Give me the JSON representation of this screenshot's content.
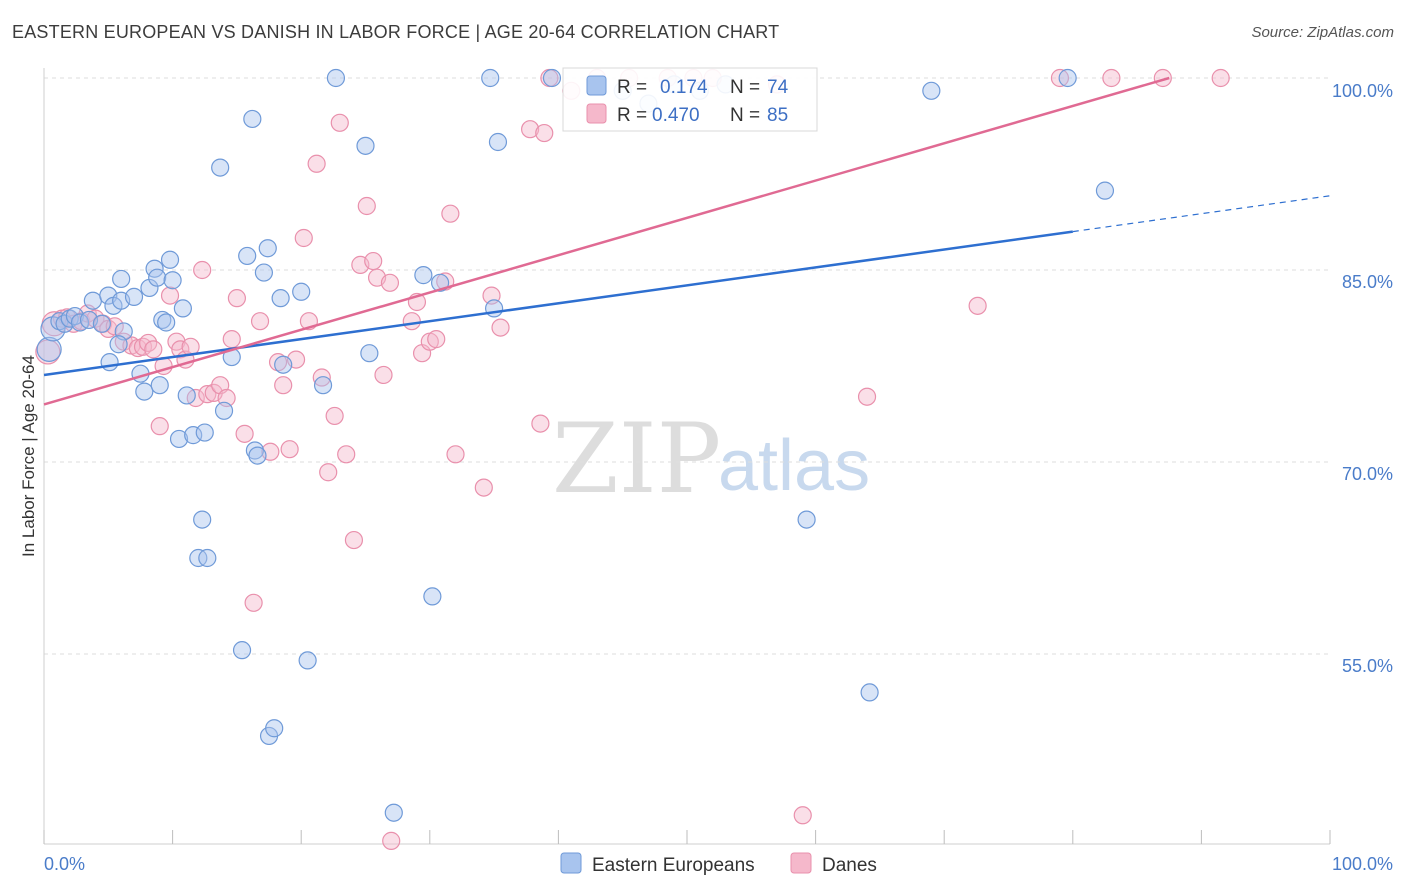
{
  "header": {
    "title": "EASTERN EUROPEAN VS DANISH IN LABOR FORCE | AGE 20-64 CORRELATION CHART",
    "source": "Source: ZipAtlas.com"
  },
  "watermark": {
    "zip": "ZIP",
    "atlas": "atlas"
  },
  "legend_box": {
    "rows": [
      {
        "r_label": "R =",
        "r_value": "0.174",
        "n_label": "N =",
        "n_value": "74",
        "color": "#a8c4ee"
      },
      {
        "r_label": "R =",
        "r_value": "0.470",
        "n_label": "N =",
        "n_value": "85",
        "color": "#f5b8cb"
      }
    ]
  },
  "bottom_legend": [
    {
      "label": "Eastern Europeans",
      "color": "#a8c4ee"
    },
    {
      "label": "Danes",
      "color": "#f5b8cb"
    }
  ],
  "colors": {
    "blue_fill": "#a8c4ee",
    "blue_stroke": "#6f9ad8",
    "blue_line": "#2e6fd0",
    "pink_fill": "#f5b8cb",
    "pink_stroke": "#e990ac",
    "pink_line": "#e06a93",
    "grid": "#dedede",
    "tick_text": "#4a7cc9"
  },
  "chart_data": {
    "type": "scatter",
    "title": "EASTERN EUROPEAN VS DANISH IN LABOR FORCE | AGE 20-64 CORRELATION CHART",
    "xlabel": "",
    "ylabel": "In Labor Force | Age 20-64",
    "xlim": [
      0,
      100
    ],
    "ylim": [
      40,
      102
    ],
    "x_tick_labels": [
      "0.0%",
      "100.0%"
    ],
    "y_ticks": [
      55,
      70,
      85,
      100
    ],
    "y_tick_labels": [
      "55.0%",
      "70.0%",
      "85.0%",
      "100.0%"
    ],
    "grid": true,
    "legend_position": "top-center",
    "series": [
      {
        "name": "Eastern Europeans",
        "r": 0.174,
        "n": 74,
        "trend": {
          "x0": 0,
          "y0": 76.8,
          "x1": 80,
          "y1": 88.0,
          "dashed_to_x": 100,
          "dashed_to_y": 90.8
        },
        "points": [
          [
            0.4,
            78.8
          ],
          [
            0.7,
            80.4
          ],
          [
            1.2,
            81.0
          ],
          [
            1.6,
            80.8
          ],
          [
            2.0,
            81.2
          ],
          [
            2.4,
            81.4
          ],
          [
            2.8,
            80.9
          ],
          [
            3.5,
            81.1
          ],
          [
            3.8,
            82.6
          ],
          [
            4.5,
            80.8
          ],
          [
            5.0,
            83.0
          ],
          [
            5.4,
            82.2
          ],
          [
            6.0,
            82.6
          ],
          [
            6.2,
            80.2
          ],
          [
            5.1,
            77.8
          ],
          [
            6.0,
            84.3
          ],
          [
            7.0,
            82.9
          ],
          [
            7.5,
            76.9
          ],
          [
            7.8,
            75.5
          ],
          [
            8.2,
            83.6
          ],
          [
            8.6,
            85.1
          ],
          [
            8.8,
            84.4
          ],
          [
            9.0,
            76.0
          ],
          [
            9.2,
            81.1
          ],
          [
            9.5,
            80.9
          ],
          [
            9.8,
            85.8
          ],
          [
            10.0,
            84.2
          ],
          [
            10.5,
            71.8
          ],
          [
            10.8,
            82.0
          ],
          [
            11.1,
            75.2
          ],
          [
            11.6,
            72.1
          ],
          [
            12.0,
            62.5
          ],
          [
            12.3,
            65.5
          ],
          [
            12.5,
            72.3
          ],
          [
            12.7,
            62.5
          ],
          [
            13.7,
            93.0
          ],
          [
            14.0,
            74.0
          ],
          [
            14.6,
            78.2
          ],
          [
            15.4,
            55.3
          ],
          [
            15.8,
            86.1
          ],
          [
            16.2,
            96.8
          ],
          [
            16.4,
            70.9
          ],
          [
            16.6,
            70.5
          ],
          [
            17.1,
            84.8
          ],
          [
            17.4,
            86.7
          ],
          [
            17.5,
            48.6
          ],
          [
            17.9,
            49.2
          ],
          [
            18.4,
            82.8
          ],
          [
            18.6,
            77.6
          ],
          [
            20.0,
            83.3
          ],
          [
            20.5,
            54.5
          ],
          [
            21.7,
            76.0
          ],
          [
            22.7,
            100.0
          ],
          [
            25.0,
            94.7
          ],
          [
            25.3,
            78.5
          ],
          [
            27.2,
            42.6
          ],
          [
            29.5,
            84.6
          ],
          [
            30.2,
            59.5
          ],
          [
            30.8,
            84.0
          ],
          [
            34.7,
            100.0
          ],
          [
            35.0,
            82.0
          ],
          [
            35.3,
            95.0
          ],
          [
            39.5,
            100.0
          ],
          [
            45.0,
            99.0
          ],
          [
            47.0,
            98.0
          ],
          [
            49.0,
            99.5
          ],
          [
            51.0,
            99.0
          ],
          [
            53.0,
            99.5
          ],
          [
            59.3,
            65.5
          ],
          [
            64.2,
            52.0
          ],
          [
            69.0,
            99.0
          ],
          [
            79.6,
            100.0
          ],
          [
            82.5,
            91.2
          ],
          [
            5.8,
            79.2
          ]
        ]
      },
      {
        "name": "Danes",
        "r": 0.47,
        "n": 85,
        "trend": {
          "x0": 0,
          "y0": 74.5,
          "x1": 87.5,
          "y1": 100.0
        },
        "points": [
          [
            0.3,
            78.6
          ],
          [
            0.8,
            80.8
          ],
          [
            1.4,
            81.2
          ],
          [
            1.8,
            81.3
          ],
          [
            2.3,
            80.8
          ],
          [
            2.9,
            81.0
          ],
          [
            3.4,
            81.6
          ],
          [
            4.0,
            81.2
          ],
          [
            4.6,
            80.8
          ],
          [
            5.0,
            80.4
          ],
          [
            5.5,
            80.6
          ],
          [
            6.2,
            79.4
          ],
          [
            6.8,
            79.1
          ],
          [
            7.3,
            78.9
          ],
          [
            7.7,
            79.0
          ],
          [
            8.1,
            79.3
          ],
          [
            8.5,
            78.8
          ],
          [
            9.0,
            72.8
          ],
          [
            9.3,
            77.5
          ],
          [
            9.8,
            83.0
          ],
          [
            10.3,
            79.4
          ],
          [
            10.6,
            78.8
          ],
          [
            11.0,
            78.0
          ],
          [
            11.4,
            79.0
          ],
          [
            11.8,
            75.0
          ],
          [
            12.3,
            85.0
          ],
          [
            12.7,
            75.3
          ],
          [
            13.2,
            75.4
          ],
          [
            13.7,
            76.0
          ],
          [
            14.2,
            75.0
          ],
          [
            14.6,
            79.6
          ],
          [
            15.0,
            82.8
          ],
          [
            15.6,
            72.2
          ],
          [
            16.3,
            59.0
          ],
          [
            16.8,
            81.0
          ],
          [
            17.6,
            70.8
          ],
          [
            18.2,
            77.8
          ],
          [
            18.6,
            76.0
          ],
          [
            19.1,
            71.0
          ],
          [
            19.6,
            78.0
          ],
          [
            20.2,
            87.5
          ],
          [
            20.6,
            81.0
          ],
          [
            21.2,
            93.3
          ],
          [
            21.6,
            76.6
          ],
          [
            22.1,
            69.2
          ],
          [
            22.6,
            73.6
          ],
          [
            23.0,
            96.5
          ],
          [
            23.5,
            70.6
          ],
          [
            24.1,
            63.9
          ],
          [
            24.6,
            85.4
          ],
          [
            25.1,
            90.0
          ],
          [
            25.6,
            85.7
          ],
          [
            25.9,
            84.4
          ],
          [
            26.4,
            76.8
          ],
          [
            26.9,
            84.0
          ],
          [
            27.0,
            40.4
          ],
          [
            28.6,
            81.0
          ],
          [
            29.0,
            82.5
          ],
          [
            29.4,
            78.5
          ],
          [
            30.0,
            79.4
          ],
          [
            30.5,
            79.6
          ],
          [
            31.2,
            84.1
          ],
          [
            31.6,
            89.4
          ],
          [
            32.0,
            70.6
          ],
          [
            34.2,
            68.0
          ],
          [
            34.8,
            83.0
          ],
          [
            35.5,
            80.5
          ],
          [
            37.8,
            96.0
          ],
          [
            38.6,
            73.0
          ],
          [
            38.9,
            95.7
          ],
          [
            39.3,
            100.0
          ],
          [
            41.0,
            99.0
          ],
          [
            43.0,
            100.0
          ],
          [
            45.5,
            100.0
          ],
          [
            48.5,
            100.0
          ],
          [
            50.5,
            100.0
          ],
          [
            52.0,
            100.0
          ],
          [
            57.0,
            99.5
          ],
          [
            59.0,
            42.4
          ],
          [
            64.0,
            75.1
          ],
          [
            72.6,
            82.2
          ],
          [
            79.0,
            100.0
          ],
          [
            83.0,
            100.0
          ],
          [
            87.0,
            100.0
          ],
          [
            91.5,
            100.0
          ]
        ]
      }
    ]
  }
}
